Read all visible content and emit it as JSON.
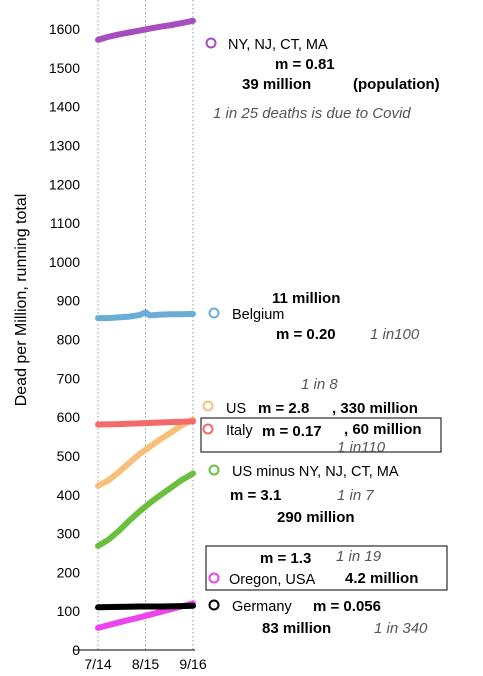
{
  "chart_data": {
    "type": "line",
    "title": "",
    "ylabel": "Dead per Million, running total",
    "xlabel": "",
    "x_ticks": [
      "7/14",
      "8/15",
      "9/16"
    ],
    "x_tick_days": [
      0,
      32,
      64
    ],
    "ylim": [
      0,
      1650
    ],
    "y_ticks": [
      0,
      100,
      200,
      300,
      400,
      500,
      600,
      700,
      800,
      900,
      1000,
      1100,
      1200,
      1300,
      1400,
      1500,
      1600
    ],
    "grid": "vertical dotted lines at x ticks",
    "series": [
      {
        "name": "NY, NJ, CT, MA",
        "color": "#a64dbf",
        "x": [
          "7/14",
          "7/21",
          "7/28",
          "8/4",
          "8/11",
          "8/18",
          "8/25",
          "9/1",
          "9/8",
          "9/16"
        ],
        "values": [
          1572,
          1580,
          1586,
          1591,
          1596,
          1601,
          1606,
          1610,
          1615,
          1621
        ]
      },
      {
        "name": "Belgium",
        "color": "#6aaed6",
        "x": [
          "7/14",
          "7/21",
          "7/28",
          "8/4",
          "8/11",
          "8/15",
          "8/18",
          "8/25",
          "9/1",
          "9/8",
          "9/16"
        ],
        "values": [
          855,
          855,
          857,
          859,
          863,
          870,
          862,
          864,
          865,
          865,
          866
        ]
      },
      {
        "name": "US",
        "color": "#f7bf7a",
        "x": [
          "7/14",
          "7/21",
          "7/28",
          "8/4",
          "8/11",
          "8/18",
          "8/25",
          "9/1",
          "9/8",
          "9/16"
        ],
        "values": [
          423,
          437,
          458,
          482,
          505,
          524,
          543,
          560,
          578,
          594
        ]
      },
      {
        "name": "Italy",
        "color": "#f26a6a",
        "x": [
          "7/14",
          "7/28",
          "8/11",
          "8/25",
          "9/8",
          "9/16"
        ],
        "values": [
          581,
          582,
          584,
          586,
          588,
          589
        ]
      },
      {
        "name": "US minus NY, NJ, CT, MA",
        "color": "#6bbf3e",
        "x": [
          "7/14",
          "7/21",
          "7/28",
          "8/4",
          "8/11",
          "8/18",
          "8/25",
          "9/1",
          "9/8",
          "9/16"
        ],
        "values": [
          268,
          284,
          307,
          333,
          357,
          379,
          399,
          418,
          437,
          455
        ]
      },
      {
        "name": "Oregon, USA",
        "color": "#ee44ee",
        "x": [
          "7/14",
          "7/28",
          "8/11",
          "8/25",
          "9/8",
          "9/16"
        ],
        "values": [
          57,
          71,
          84,
          98,
          112,
          120
        ]
      },
      {
        "name": "Germany",
        "color": "#000000",
        "x": [
          "7/14",
          "7/28",
          "8/11",
          "8/25",
          "9/8",
          "9/16"
        ],
        "values": [
          110,
          111,
          112,
          112,
          113,
          114
        ]
      }
    ],
    "legend_placement": "right of plot, next to each line"
  },
  "annotations": {
    "ny_m": "m = 0.81",
    "ny_pop": "39 million",
    "ny_pop_note": "(population)",
    "ny_rate": "1 in 25 deaths is due to Covid",
    "be_pop": "11 million",
    "be_m": "m = 0.20",
    "be_rate": "1 in100",
    "us_rate": "1 in 8",
    "us_m": "m = 2.8",
    "us_pop": ", 330 million",
    "it_m": "m = 0.17",
    "it_pop": ", 60 million",
    "it_rate": "1 in110",
    "usm_m": "m = 3.1",
    "usm_rate": "1 in 7",
    "usm_pop": "290 million",
    "or_m": "m = 1.3",
    "or_rate": "1 in 19",
    "or_pop": "4.2 million",
    "de_m": "m = 0.056",
    "de_pop": "83 million",
    "de_rate": "1 in 340"
  }
}
